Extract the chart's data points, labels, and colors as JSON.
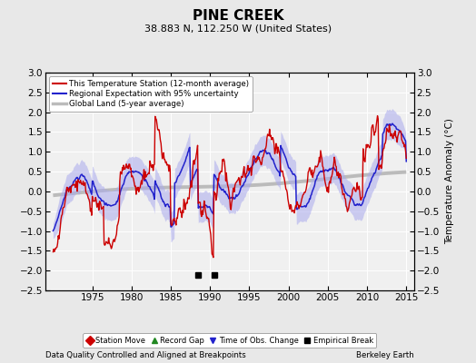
{
  "title": "PINE CREEK",
  "subtitle": "38.883 N, 112.250 W (United States)",
  "ylabel": "Temperature Anomaly (°C)",
  "xlabel_bottom": "Data Quality Controlled and Aligned at Breakpoints",
  "xlabel_right": "Berkeley Earth",
  "ylim": [
    -2.5,
    3.0
  ],
  "xlim": [
    1969,
    2016
  ],
  "xticks": [
    1975,
    1980,
    1985,
    1990,
    1995,
    2000,
    2005,
    2010,
    2015
  ],
  "yticks": [
    -2.5,
    -2,
    -1.5,
    -1,
    -0.5,
    0,
    0.5,
    1,
    1.5,
    2,
    2.5,
    3
  ],
  "empirical_breaks": [
    1988.5,
    1990.5
  ],
  "background_color": "#e8e8e8",
  "plot_bg_color": "#f0f0f0",
  "grid_color": "#ffffff",
  "station_color": "#cc0000",
  "regional_color": "#2222cc",
  "regional_band_color": "#aaaaee",
  "global_color": "#bbbbbb",
  "legend_fontsize": 6.5,
  "marker_fontsize": 6.0
}
